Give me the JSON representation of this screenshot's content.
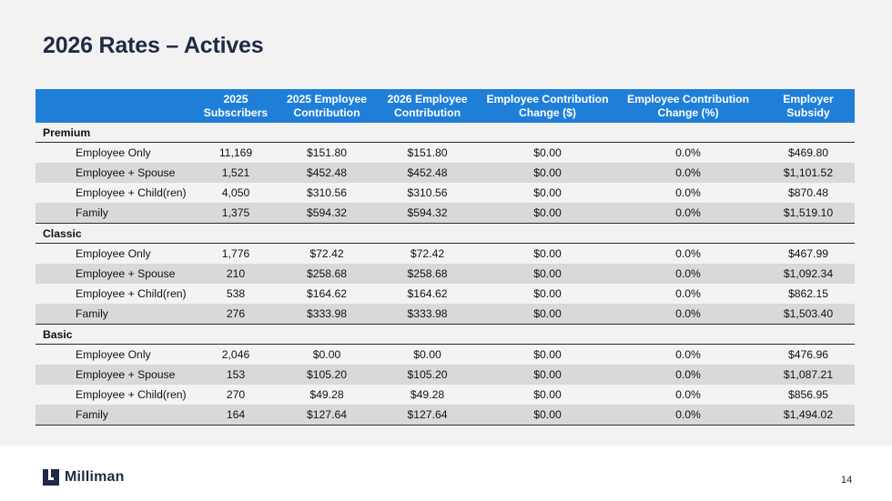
{
  "slide": {
    "title": "2026 Rates – Actives",
    "page_number": "14"
  },
  "brand": {
    "name": "Milliman",
    "logo_icon": "milliman-logo-icon",
    "text_color": "#1f2a44"
  },
  "colors": {
    "header_bg": "#1f7fd8",
    "row_light": "#f3f3f3",
    "row_dark": "#d9d9d9"
  },
  "table": {
    "headers": [
      "",
      "2025\nSubscribers",
      "2025 Employee\nContribution",
      "2026 Employee\nContribution",
      "Employee Contribution\nChange ($)",
      "Employee Contribution\nChange (%)",
      "Employer\nSubsidy"
    ],
    "sections": [
      {
        "name": "Premium",
        "rows": [
          [
            "Employee Only",
            "11,169",
            "$151.80",
            "$151.80",
            "$0.00",
            "0.0%",
            "$469.80"
          ],
          [
            "Employee + Spouse",
            "1,521",
            "$452.48",
            "$452.48",
            "$0.00",
            "0.0%",
            "$1,101.52"
          ],
          [
            "Employee + Child(ren)",
            "4,050",
            "$310.56",
            "$310.56",
            "$0.00",
            "0.0%",
            "$870.48"
          ],
          [
            "Family",
            "1,375",
            "$594.32",
            "$594.32",
            "$0.00",
            "0.0%",
            "$1,519.10"
          ]
        ]
      },
      {
        "name": "Classic",
        "rows": [
          [
            "Employee Only",
            "1,776",
            "$72.42",
            "$72.42",
            "$0.00",
            "0.0%",
            "$467.99"
          ],
          [
            "Employee + Spouse",
            "210",
            "$258.68",
            "$258.68",
            "$0.00",
            "0.0%",
            "$1,092.34"
          ],
          [
            "Employee + Child(ren)",
            "538",
            "$164.62",
            "$164.62",
            "$0.00",
            "0.0%",
            "$862.15"
          ],
          [
            "Family",
            "276",
            "$333.98",
            "$333.98",
            "$0.00",
            "0.0%",
            "$1,503.40"
          ]
        ]
      },
      {
        "name": "Basic",
        "rows": [
          [
            "Employee Only",
            "2,046",
            "$0.00",
            "$0.00",
            "$0.00",
            "0.0%",
            "$476.96"
          ],
          [
            "Employee + Spouse",
            "153",
            "$105.20",
            "$105.20",
            "$0.00",
            "0.0%",
            "$1,087.21"
          ],
          [
            "Employee + Child(ren)",
            "270",
            "$49.28",
            "$49.28",
            "$0.00",
            "0.0%",
            "$856.95"
          ],
          [
            "Family",
            "164",
            "$127.64",
            "$127.64",
            "$0.00",
            "0.0%",
            "$1,494.02"
          ]
        ]
      }
    ]
  }
}
